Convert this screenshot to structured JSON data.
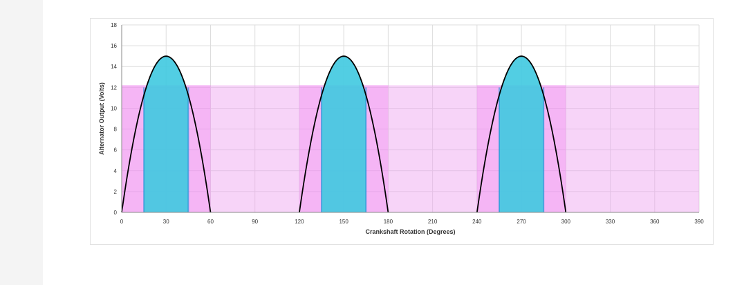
{
  "chart_data": {
    "type": "area",
    "xlabel": "Crankshaft Rotation (Degrees)",
    "ylabel": "Alternator Output (Volts)",
    "xlim": [
      0,
      390
    ],
    "ylim": [
      0,
      18
    ],
    "x_ticks": [
      0,
      30,
      60,
      90,
      120,
      150,
      180,
      210,
      240,
      270,
      300,
      330,
      360,
      390
    ],
    "y_ticks": [
      0,
      2,
      4,
      6,
      8,
      10,
      12,
      14,
      16,
      18
    ],
    "grid": true,
    "pink_fill": {
      "color": "#ee9ff0",
      "level": 12.2,
      "x_range": [
        0,
        390
      ]
    },
    "curve": {
      "color": "#000000",
      "peak_voltage": 15,
      "pulses": [
        {
          "start": 0,
          "peak": 30,
          "end": 60
        },
        {
          "start": 120,
          "peak": 150,
          "end": 180
        },
        {
          "start": 240,
          "peak": 270,
          "end": 300
        }
      ]
    },
    "cyan_fill": {
      "color": "#3fc9e0",
      "bands": [
        {
          "start": 15,
          "end": 45
        },
        {
          "start": 135,
          "end": 165
        },
        {
          "start": 255,
          "end": 285
        }
      ]
    }
  }
}
